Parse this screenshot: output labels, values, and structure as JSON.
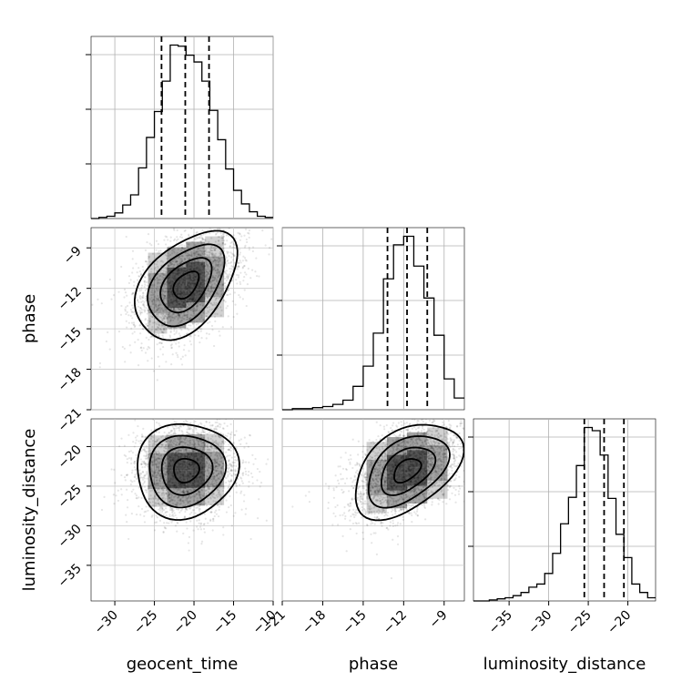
{
  "chart_data": {
    "type": "corner",
    "parameters": [
      "geocent_time",
      "phase",
      "luminosity_distance"
    ],
    "axes": {
      "geocent_time": {
        "label": "geocent_time",
        "range": [
          -33,
          -10
        ],
        "ticks": [
          -30,
          -25,
          -20,
          -15,
          -10
        ],
        "tick_labels": [
          "−30",
          "−25",
          "−20",
          "−15",
          "−10"
        ]
      },
      "phase": {
        "label": "phase",
        "range": [
          -21,
          -7.5
        ],
        "ticks": [
          -21,
          -18,
          -15,
          -12,
          -9
        ],
        "tick_labels": [
          "−21",
          "−18",
          "−15",
          "−12",
          "−9"
        ]
      },
      "luminosity_distance": {
        "label": "luminosity_distance",
        "range": [
          -39.5,
          -16.5
        ],
        "ticks": [
          -35,
          -30,
          -25,
          -20
        ],
        "tick_labels": [
          "−35",
          "−30",
          "−25",
          "−20"
        ]
      }
    },
    "grid": true,
    "histograms": {
      "geocent_time": {
        "bin_edges": [
          -33,
          -32,
          -31,
          -30,
          -29,
          -28,
          -27,
          -26,
          -25,
          -24,
          -23,
          -22,
          -21,
          -20,
          -19,
          -18,
          -17,
          -16,
          -15,
          -14,
          -13,
          -12,
          -11,
          -10
        ],
        "counts": [
          0,
          1,
          2,
          5,
          12,
          21,
          45,
          72,
          95,
          122,
          154,
          153,
          145,
          139,
          122,
          96,
          70,
          44,
          25,
          13,
          6,
          2,
          1
        ],
        "quantiles": [
          -24.1,
          -21.1,
          -18.1
        ]
      },
      "phase": {
        "bin_edges": [
          -21,
          -20.25,
          -19.5,
          -18.75,
          -18,
          -17.25,
          -16.5,
          -15.75,
          -15,
          -14.25,
          -13.5,
          -12.75,
          -12,
          -11.25,
          -10.5,
          -9.75,
          -9,
          -8.25,
          -7.5
        ],
        "counts": [
          0,
          1,
          1,
          2,
          3,
          5,
          9,
          22,
          41,
          72,
          123,
          155,
          163,
          135,
          105,
          70,
          29,
          11
        ],
        "quantiles": [
          -13.2,
          -11.75,
          -10.25
        ]
      },
      "luminosity_distance": {
        "bin_edges": [
          -39.5,
          -38.5,
          -37.5,
          -36.5,
          -35.5,
          -34.5,
          -33.5,
          -32.5,
          -31.5,
          -30.5,
          -29.5,
          -28.5,
          -27.5,
          -26.5,
          -25.5,
          -24.5,
          -23.5,
          -22.5,
          -21.5,
          -20.5,
          -19.5,
          -18.5,
          -17.5,
          -16.5
        ],
        "counts": [
          0,
          0,
          1,
          2,
          3,
          5,
          8,
          13,
          16,
          26,
          45,
          73,
          98,
          128,
          164,
          161,
          138,
          97,
          63,
          41,
          16,
          8,
          3
        ],
        "quantiles": [
          -25.5,
          -23.0,
          -20.5
        ]
      }
    },
    "scatter": [
      {
        "x": "geocent_time",
        "y": "phase",
        "mean": [
          -21,
          -11.75
        ],
        "std": [
          3.2,
          2.0
        ],
        "corr": 0.45,
        "points": 2600
      },
      {
        "x": "geocent_time",
        "y": "luminosity_distance",
        "mean": [
          -21,
          -23
        ],
        "std": [
          3.2,
          3.0
        ],
        "corr": 0.05,
        "points": 2600
      },
      {
        "x": "phase",
        "y": "luminosity_distance",
        "mean": [
          -11.75,
          -23
        ],
        "std": [
          2.0,
          3.0
        ],
        "corr": 0.45,
        "points": 2600
      }
    ],
    "contour_levels": [
      "0.5",
      "1.0",
      "1.5",
      "2.0"
    ]
  }
}
